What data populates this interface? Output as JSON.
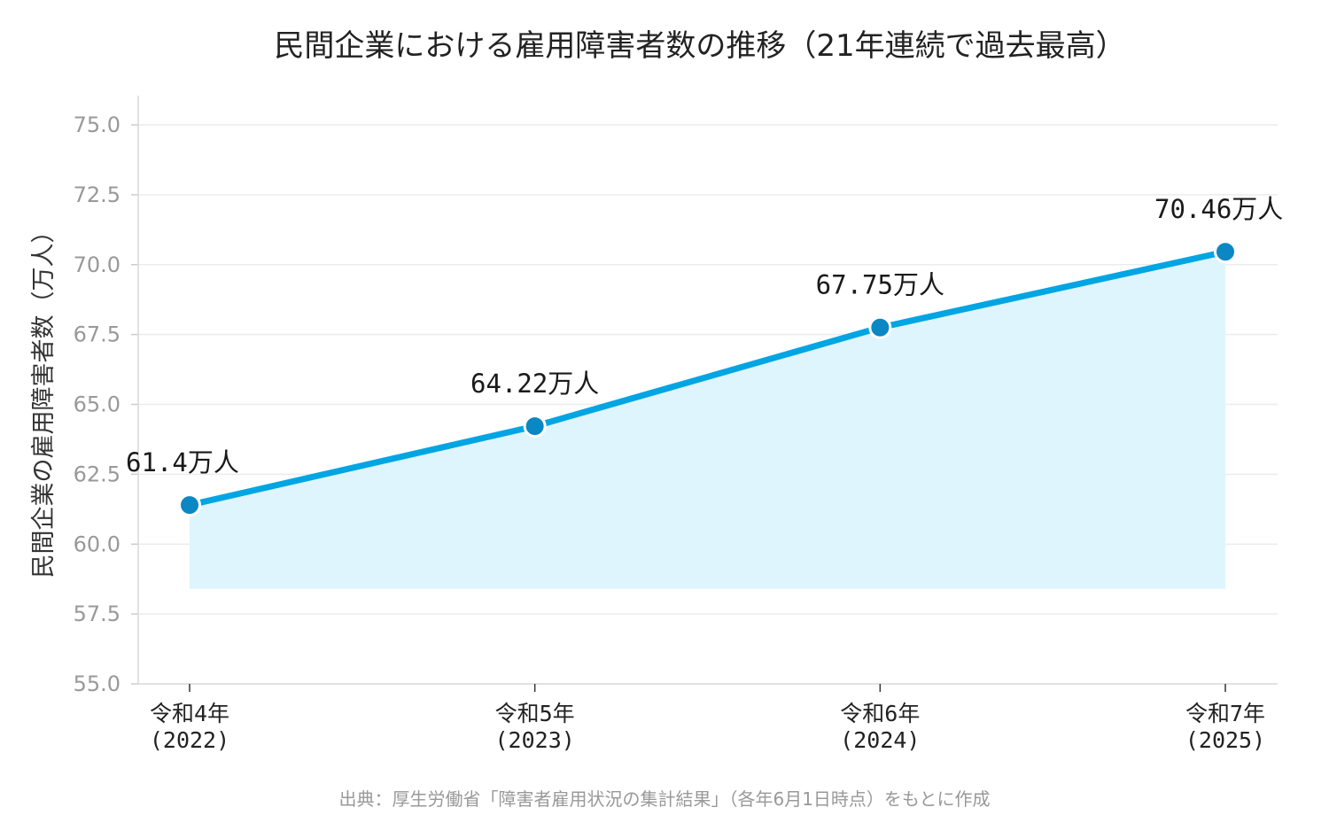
{
  "chart_data": {
    "type": "area",
    "title": "民間企業における雇用障害者数の推移（21年連続で過去最高）",
    "ylabel": "民間企業の雇用障害者数（万人）",
    "xlabel": "",
    "categories": [
      [
        "令和4年",
        "(2022)"
      ],
      [
        "令和5年",
        "(2023)"
      ],
      [
        "令和6年",
        "(2024)"
      ],
      [
        "令和7年",
        "(2025)"
      ]
    ],
    "values": [
      61.4,
      64.22,
      67.75,
      70.46
    ],
    "data_labels": [
      "61.4万人",
      "64.22万人",
      "67.75万人",
      "70.46万人"
    ],
    "yticks": [
      "55.0",
      "57.5",
      "60.0",
      "62.5",
      "65.0",
      "67.5",
      "70.0",
      "72.5",
      "75.0"
    ],
    "ylim": [
      55.0,
      76.0
    ],
    "area_baseline": 58.4,
    "grid": "horizontal",
    "line_color": "#00a5e3",
    "fill_color": "#dff5fd",
    "marker_color": "#0b87c4",
    "source": "出典：厚生労働省「障害者雇用状況の集計結果」（各年6月1日時点）をもとに作成"
  }
}
